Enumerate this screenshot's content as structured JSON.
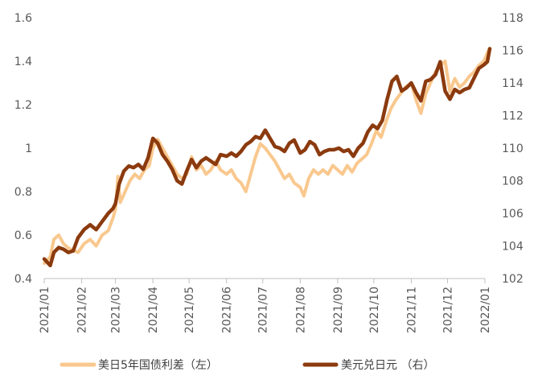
{
  "chart_data": {
    "type": "line",
    "title": "",
    "x_ticks": [
      "2021/01",
      "2021/02",
      "2021/03",
      "2021/04",
      "2021/05",
      "2021/06",
      "2021/07",
      "2021/08",
      "2021/09",
      "2021/10",
      "2021/11",
      "2021/12",
      "2022/01"
    ],
    "y_left": {
      "min": 0.4,
      "max": 1.6,
      "ticks": [
        "0.4",
        "0.6",
        "0.8",
        "1",
        "1.2",
        "1.4",
        "1.6"
      ]
    },
    "y_right": {
      "min": 102,
      "max": 118,
      "ticks": [
        "102",
        "104",
        "106",
        "108",
        "110",
        "112",
        "114",
        "116",
        "118"
      ]
    },
    "series": [
      {
        "name": "美日5年国债利差（左）",
        "axis": "left",
        "color": "#F9C88E",
        "points": [
          [
            "2021/01/01",
            0.47
          ],
          [
            "2021/01/06",
            0.5
          ],
          [
            "2021/01/09",
            0.58
          ],
          [
            "2021/01/13",
            0.6
          ],
          [
            "2021/01/17",
            0.56
          ],
          [
            "2021/01/21",
            0.54
          ],
          [
            "2021/01/25",
            0.53
          ],
          [
            "2021/01/29",
            0.52
          ],
          [
            "2021/02/03",
            0.56
          ],
          [
            "2021/02/08",
            0.58
          ],
          [
            "2021/02/13",
            0.55
          ],
          [
            "2021/02/18",
            0.6
          ],
          [
            "2021/02/23",
            0.62
          ],
          [
            "2021/02/27",
            0.68
          ],
          [
            "2021/03/01",
            0.72
          ],
          [
            "2021/03/03",
            0.87
          ],
          [
            "2021/03/05",
            0.75
          ],
          [
            "2021/03/09",
            0.8
          ],
          [
            "2021/03/13",
            0.85
          ],
          [
            "2021/03/17",
            0.88
          ],
          [
            "2021/03/21",
            0.86
          ],
          [
            "2021/03/25",
            0.9
          ],
          [
            "2021/03/29",
            0.92
          ],
          [
            "2021/04/01",
            1.0
          ],
          [
            "2021/04/05",
            1.04
          ],
          [
            "2021/04/09",
            1.0
          ],
          [
            "2021/04/13",
            0.96
          ],
          [
            "2021/04/17",
            0.92
          ],
          [
            "2021/04/21",
            0.88
          ],
          [
            "2021/04/25",
            0.86
          ],
          [
            "2021/04/29",
            0.88
          ],
          [
            "2021/05/03",
            0.96
          ],
          [
            "2021/05/07",
            0.9
          ],
          [
            "2021/05/11",
            0.92
          ],
          [
            "2021/05/15",
            0.88
          ],
          [
            "2021/05/19",
            0.9
          ],
          [
            "2021/05/23",
            0.94
          ],
          [
            "2021/05/27",
            0.9
          ],
          [
            "2021/06/01",
            0.88
          ],
          [
            "2021/06/05",
            0.9
          ],
          [
            "2021/06/09",
            0.86
          ],
          [
            "2021/06/13",
            0.84
          ],
          [
            "2021/06/17",
            0.8
          ],
          [
            "2021/06/21",
            0.88
          ],
          [
            "2021/06/25",
            0.96
          ],
          [
            "2021/06/29",
            1.02
          ],
          [
            "2021/07/03",
            1.0
          ],
          [
            "2021/07/07",
            0.97
          ],
          [
            "2021/07/11",
            0.94
          ],
          [
            "2021/07/15",
            0.9
          ],
          [
            "2021/07/19",
            0.86
          ],
          [
            "2021/07/23",
            0.88
          ],
          [
            "2021/07/27",
            0.84
          ],
          [
            "2021/08/01",
            0.82
          ],
          [
            "2021/08/04",
            0.78
          ],
          [
            "2021/08/08",
            0.86
          ],
          [
            "2021/08/12",
            0.9
          ],
          [
            "2021/08/16",
            0.88
          ],
          [
            "2021/08/20",
            0.9
          ],
          [
            "2021/08/24",
            0.88
          ],
          [
            "2021/08/28",
            0.92
          ],
          [
            "2021/09/01",
            0.9
          ],
          [
            "2021/09/05",
            0.88
          ],
          [
            "2021/09/09",
            0.92
          ],
          [
            "2021/09/13",
            0.89
          ],
          [
            "2021/09/17",
            0.93
          ],
          [
            "2021/09/21",
            0.95
          ],
          [
            "2021/09/25",
            0.97
          ],
          [
            "2021/09/29",
            1.02
          ],
          [
            "2021/10/03",
            1.08
          ],
          [
            "2021/10/07",
            1.05
          ],
          [
            "2021/10/11",
            1.12
          ],
          [
            "2021/10/15",
            1.18
          ],
          [
            "2021/10/19",
            1.22
          ],
          [
            "2021/10/23",
            1.25
          ],
          [
            "2021/10/27",
            1.28
          ],
          [
            "2021/11/01",
            1.3
          ],
          [
            "2021/11/05",
            1.22
          ],
          [
            "2021/11/09",
            1.16
          ],
          [
            "2021/11/13",
            1.25
          ],
          [
            "2021/11/17",
            1.3
          ],
          [
            "2021/11/21",
            1.35
          ],
          [
            "2021/11/25",
            1.38
          ],
          [
            "2021/11/29",
            1.4
          ],
          [
            "2021/12/03",
            1.26
          ],
          [
            "2021/12/07",
            1.32
          ],
          [
            "2021/12/11",
            1.28
          ],
          [
            "2021/12/15",
            1.3
          ],
          [
            "2021/12/19",
            1.33
          ],
          [
            "2021/12/23",
            1.35
          ],
          [
            "2021/12/27",
            1.38
          ],
          [
            "2021/12/31",
            1.4
          ],
          [
            "2022/01/04",
            1.45
          ]
        ]
      },
      {
        "name": "美元兑日元 （右）",
        "axis": "right",
        "color": "#8B3A0E",
        "points": [
          [
            "2021/01/01",
            103.2
          ],
          [
            "2021/01/06",
            102.8
          ],
          [
            "2021/01/09",
            103.6
          ],
          [
            "2021/01/13",
            103.9
          ],
          [
            "2021/01/17",
            103.8
          ],
          [
            "2021/01/21",
            103.6
          ],
          [
            "2021/01/25",
            103.7
          ],
          [
            "2021/01/29",
            104.5
          ],
          [
            "2021/02/03",
            105.0
          ],
          [
            "2021/02/08",
            105.3
          ],
          [
            "2021/02/13",
            105.0
          ],
          [
            "2021/02/18",
            105.5
          ],
          [
            "2021/02/23",
            106.0
          ],
          [
            "2021/02/27",
            106.3
          ],
          [
            "2021/03/01",
            106.6
          ],
          [
            "2021/03/04",
            107.8
          ],
          [
            "2021/03/08",
            108.6
          ],
          [
            "2021/03/12",
            108.9
          ],
          [
            "2021/03/16",
            108.8
          ],
          [
            "2021/03/20",
            109.0
          ],
          [
            "2021/03/24",
            108.7
          ],
          [
            "2021/03/28",
            109.4
          ],
          [
            "2021/04/01",
            110.6
          ],
          [
            "2021/04/05",
            110.3
          ],
          [
            "2021/04/09",
            109.6
          ],
          [
            "2021/04/13",
            109.2
          ],
          [
            "2021/04/17",
            108.7
          ],
          [
            "2021/04/21",
            108.0
          ],
          [
            "2021/04/25",
            107.8
          ],
          [
            "2021/04/29",
            108.6
          ],
          [
            "2021/05/03",
            109.3
          ],
          [
            "2021/05/07",
            108.8
          ],
          [
            "2021/05/11",
            109.2
          ],
          [
            "2021/05/15",
            109.4
          ],
          [
            "2021/05/19",
            109.2
          ],
          [
            "2021/05/23",
            109.0
          ],
          [
            "2021/05/27",
            109.6
          ],
          [
            "2021/06/01",
            109.5
          ],
          [
            "2021/06/05",
            109.7
          ],
          [
            "2021/06/09",
            109.5
          ],
          [
            "2021/06/13",
            109.8
          ],
          [
            "2021/06/17",
            110.2
          ],
          [
            "2021/06/21",
            110.4
          ],
          [
            "2021/06/25",
            110.7
          ],
          [
            "2021/06/29",
            110.6
          ],
          [
            "2021/07/03",
            111.1
          ],
          [
            "2021/07/07",
            110.6
          ],
          [
            "2021/07/11",
            110.1
          ],
          [
            "2021/07/15",
            110.0
          ],
          [
            "2021/07/19",
            109.8
          ],
          [
            "2021/07/23",
            110.3
          ],
          [
            "2021/07/27",
            110.5
          ],
          [
            "2021/08/01",
            109.7
          ],
          [
            "2021/08/05",
            109.9
          ],
          [
            "2021/08/09",
            110.4
          ],
          [
            "2021/08/13",
            110.2
          ],
          [
            "2021/08/17",
            109.6
          ],
          [
            "2021/08/21",
            109.8
          ],
          [
            "2021/08/25",
            109.9
          ],
          [
            "2021/08/29",
            109.9
          ],
          [
            "2021/09/02",
            110.0
          ],
          [
            "2021/09/06",
            109.8
          ],
          [
            "2021/09/10",
            109.9
          ],
          [
            "2021/09/14",
            109.5
          ],
          [
            "2021/09/18",
            110.0
          ],
          [
            "2021/09/22",
            110.3
          ],
          [
            "2021/09/26",
            111.0
          ],
          [
            "2021/09/30",
            111.4
          ],
          [
            "2021/10/04",
            111.2
          ],
          [
            "2021/10/08",
            111.7
          ],
          [
            "2021/10/12",
            113.0
          ],
          [
            "2021/10/16",
            114.1
          ],
          [
            "2021/10/20",
            114.4
          ],
          [
            "2021/10/24",
            113.5
          ],
          [
            "2021/10/28",
            113.7
          ],
          [
            "2021/11/01",
            114.0
          ],
          [
            "2021/11/05",
            113.4
          ],
          [
            "2021/11/09",
            112.9
          ],
          [
            "2021/11/13",
            114.1
          ],
          [
            "2021/11/17",
            114.2
          ],
          [
            "2021/11/21",
            114.5
          ],
          [
            "2021/11/25",
            115.3
          ],
          [
            "2021/11/29",
            113.5
          ],
          [
            "2021/12/03",
            113.0
          ],
          [
            "2021/12/07",
            113.6
          ],
          [
            "2021/12/11",
            113.4
          ],
          [
            "2021/12/15",
            113.6
          ],
          [
            "2021/12/19",
            113.7
          ],
          [
            "2021/12/23",
            114.3
          ],
          [
            "2021/12/27",
            114.9
          ],
          [
            "2021/12/31",
            115.1
          ],
          [
            "2022/01/03",
            115.3
          ],
          [
            "2022/01/05",
            116.1
          ]
        ]
      }
    ],
    "grid": false,
    "legend_position": "bottom"
  }
}
